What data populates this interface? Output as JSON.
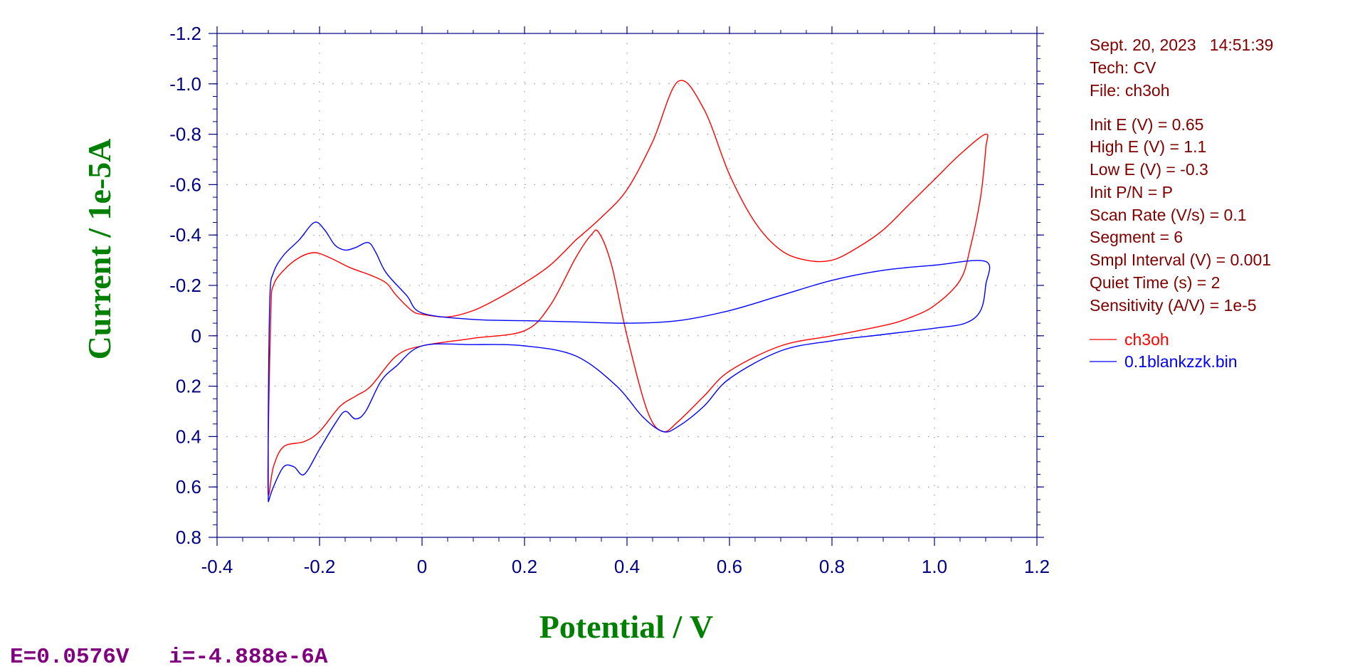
{
  "info": {
    "datetime": "Sept. 20, 2023   14:51:39",
    "tech": "Tech: CV",
    "file": "File: ch3oh",
    "params": [
      "Init E (V) = 0.65",
      "High E (V) = 1.1",
      "Low E (V) = -0.3",
      "Init P/N = P",
      "Scan Rate (V/s) = 0.1",
      "Segment = 6",
      "Smpl Interval (V) = 0.001",
      "Quiet Time (s) = 2",
      "Sensitivity (A/V) = 1e-5"
    ]
  },
  "status_readout": "E=0.0576V   i=-4.888e-6A",
  "chart_data": {
    "type": "line",
    "xlabel": "Potential / V",
    "ylabel": "Current / 1e-5A",
    "xlim": [
      -0.4,
      1.2
    ],
    "ylim": [
      -1.2,
      0.8
    ],
    "y_inverted": true,
    "grid": "dotted",
    "legend_position": "right",
    "x_ticks": [
      "-0.4",
      "-0.2",
      "0",
      "0.2",
      "0.4",
      "0.6",
      "0.8",
      "1.0",
      "1.2"
    ],
    "y_ticks": [
      "-1.2",
      "-1.0",
      "-0.8",
      "-0.6",
      "-0.4",
      "-0.2",
      "0",
      "0.2",
      "0.4",
      "0.6",
      "0.8"
    ],
    "series": [
      {
        "name": "ch3oh",
        "color": "#ff0000",
        "points": [
          [
            0.3,
            -0.38
          ],
          [
            0.35,
            -0.47
          ],
          [
            0.4,
            -0.58
          ],
          [
            0.45,
            -0.77
          ],
          [
            0.5,
            -1.01
          ],
          [
            0.55,
            -0.9
          ],
          [
            0.6,
            -0.64
          ],
          [
            0.65,
            -0.45
          ],
          [
            0.7,
            -0.34
          ],
          [
            0.75,
            -0.3
          ],
          [
            0.8,
            -0.3
          ],
          [
            0.85,
            -0.35
          ],
          [
            0.9,
            -0.42
          ],
          [
            0.95,
            -0.52
          ],
          [
            1.0,
            -0.62
          ],
          [
            1.05,
            -0.72
          ],
          [
            1.1,
            -0.8
          ],
          [
            1.1,
            -0.74
          ],
          [
            1.09,
            -0.55
          ],
          [
            1.07,
            -0.35
          ],
          [
            1.05,
            -0.22
          ],
          [
            1.0,
            -0.12
          ],
          [
            0.95,
            -0.07
          ],
          [
            0.9,
            -0.04
          ],
          [
            0.8,
            0.0
          ],
          [
            0.7,
            0.04
          ],
          [
            0.6,
            0.14
          ],
          [
            0.55,
            0.24
          ],
          [
            0.5,
            0.34
          ],
          [
            0.47,
            0.38
          ],
          [
            0.44,
            0.3
          ],
          [
            0.4,
            0.0
          ],
          [
            0.37,
            -0.28
          ],
          [
            0.345,
            -0.41
          ],
          [
            0.33,
            -0.4
          ],
          [
            0.3,
            -0.31
          ],
          [
            0.25,
            -0.12
          ],
          [
            0.2,
            -0.02
          ],
          [
            0.1,
            0.01
          ],
          [
            0.0,
            0.04
          ],
          [
            -0.05,
            0.08
          ],
          [
            -0.1,
            0.2
          ],
          [
            -0.13,
            0.24
          ],
          [
            -0.16,
            0.28
          ],
          [
            -0.2,
            0.38
          ],
          [
            -0.23,
            0.42
          ],
          [
            -0.27,
            0.44
          ],
          [
            -0.29,
            0.52
          ],
          [
            -0.3,
            0.63
          ],
          [
            -0.3,
            0.4
          ],
          [
            -0.295,
            -0.1
          ],
          [
            -0.29,
            -0.2
          ],
          [
            -0.27,
            -0.26
          ],
          [
            -0.24,
            -0.31
          ],
          [
            -0.21,
            -0.33
          ],
          [
            -0.18,
            -0.31
          ],
          [
            -0.14,
            -0.27
          ],
          [
            -0.1,
            -0.24
          ],
          [
            -0.07,
            -0.21
          ],
          [
            -0.05,
            -0.16
          ],
          [
            -0.02,
            -0.1
          ],
          [
            0.0,
            -0.085
          ],
          [
            0.05,
            -0.075
          ],
          [
            0.1,
            -0.1
          ],
          [
            0.15,
            -0.15
          ],
          [
            0.2,
            -0.21
          ],
          [
            0.25,
            -0.28
          ],
          [
            0.3,
            -0.38
          ]
        ]
      },
      {
        "name": "0.1blankzzk.bin",
        "color": "#0000ff",
        "points": [
          [
            -0.3,
            0.66
          ],
          [
            -0.3,
            0.3
          ],
          [
            -0.297,
            -0.15
          ],
          [
            -0.29,
            -0.25
          ],
          [
            -0.27,
            -0.32
          ],
          [
            -0.24,
            -0.38
          ],
          [
            -0.21,
            -0.45
          ],
          [
            -0.19,
            -0.42
          ],
          [
            -0.17,
            -0.36
          ],
          [
            -0.15,
            -0.34
          ],
          [
            -0.13,
            -0.35
          ],
          [
            -0.105,
            -0.37
          ],
          [
            -0.09,
            -0.33
          ],
          [
            -0.07,
            -0.25
          ],
          [
            -0.03,
            -0.16
          ],
          [
            0.0,
            -0.09
          ],
          [
            0.1,
            -0.065
          ],
          [
            0.2,
            -0.06
          ],
          [
            0.3,
            -0.055
          ],
          [
            0.4,
            -0.05
          ],
          [
            0.5,
            -0.06
          ],
          [
            0.6,
            -0.1
          ],
          [
            0.7,
            -0.16
          ],
          [
            0.8,
            -0.22
          ],
          [
            0.9,
            -0.26
          ],
          [
            1.0,
            -0.28
          ],
          [
            1.1,
            -0.295
          ],
          [
            1.1,
            -0.2
          ],
          [
            1.09,
            -0.1
          ],
          [
            1.06,
            -0.05
          ],
          [
            1.0,
            -0.03
          ],
          [
            0.9,
            -0.005
          ],
          [
            0.8,
            0.02
          ],
          [
            0.7,
            0.06
          ],
          [
            0.6,
            0.17
          ],
          [
            0.55,
            0.28
          ],
          [
            0.5,
            0.36
          ],
          [
            0.47,
            0.38
          ],
          [
            0.43,
            0.32
          ],
          [
            0.38,
            0.2
          ],
          [
            0.3,
            0.08
          ],
          [
            0.2,
            0.04
          ],
          [
            0.1,
            0.035
          ],
          [
            0.0,
            0.04
          ],
          [
            -0.05,
            0.12
          ],
          [
            -0.08,
            0.18
          ],
          [
            -0.11,
            0.3
          ],
          [
            -0.13,
            0.33
          ],
          [
            -0.15,
            0.3
          ],
          [
            -0.17,
            0.35
          ],
          [
            -0.2,
            0.45
          ],
          [
            -0.23,
            0.55
          ],
          [
            -0.25,
            0.52
          ],
          [
            -0.27,
            0.52
          ],
          [
            -0.29,
            0.6
          ],
          [
            -0.3,
            0.66
          ]
        ]
      }
    ]
  }
}
